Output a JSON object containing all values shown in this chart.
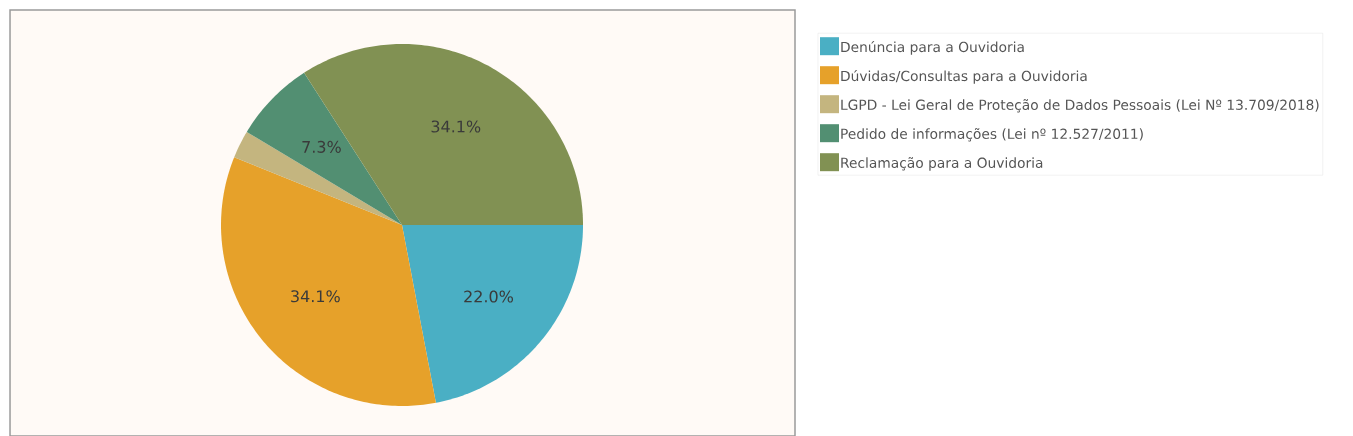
{
  "chart_data": {
    "type": "pie",
    "categories": [
      "Denúncia para a Ouvidoria",
      "Dúvidas/Consultas para a Ouvidoria",
      "LGPD - Lei Geral de Proteção de Dados Pessoais (Lei Nº 13.709/2018)",
      "Pedido de informações (Lei nº 12.527/2011)",
      "Reclamação para a Ouvidoria"
    ],
    "values": [
      22.0,
      34.1,
      2.5,
      7.3,
      34.1
    ],
    "colors": [
      "#4aafc4",
      "#e6a12a",
      "#c4b57f",
      "#528f72",
      "#819153"
    ],
    "value_labels": [
      "22.0%",
      "34.1%",
      null,
      "7.3%",
      "34.1%"
    ],
    "legend": "right"
  }
}
